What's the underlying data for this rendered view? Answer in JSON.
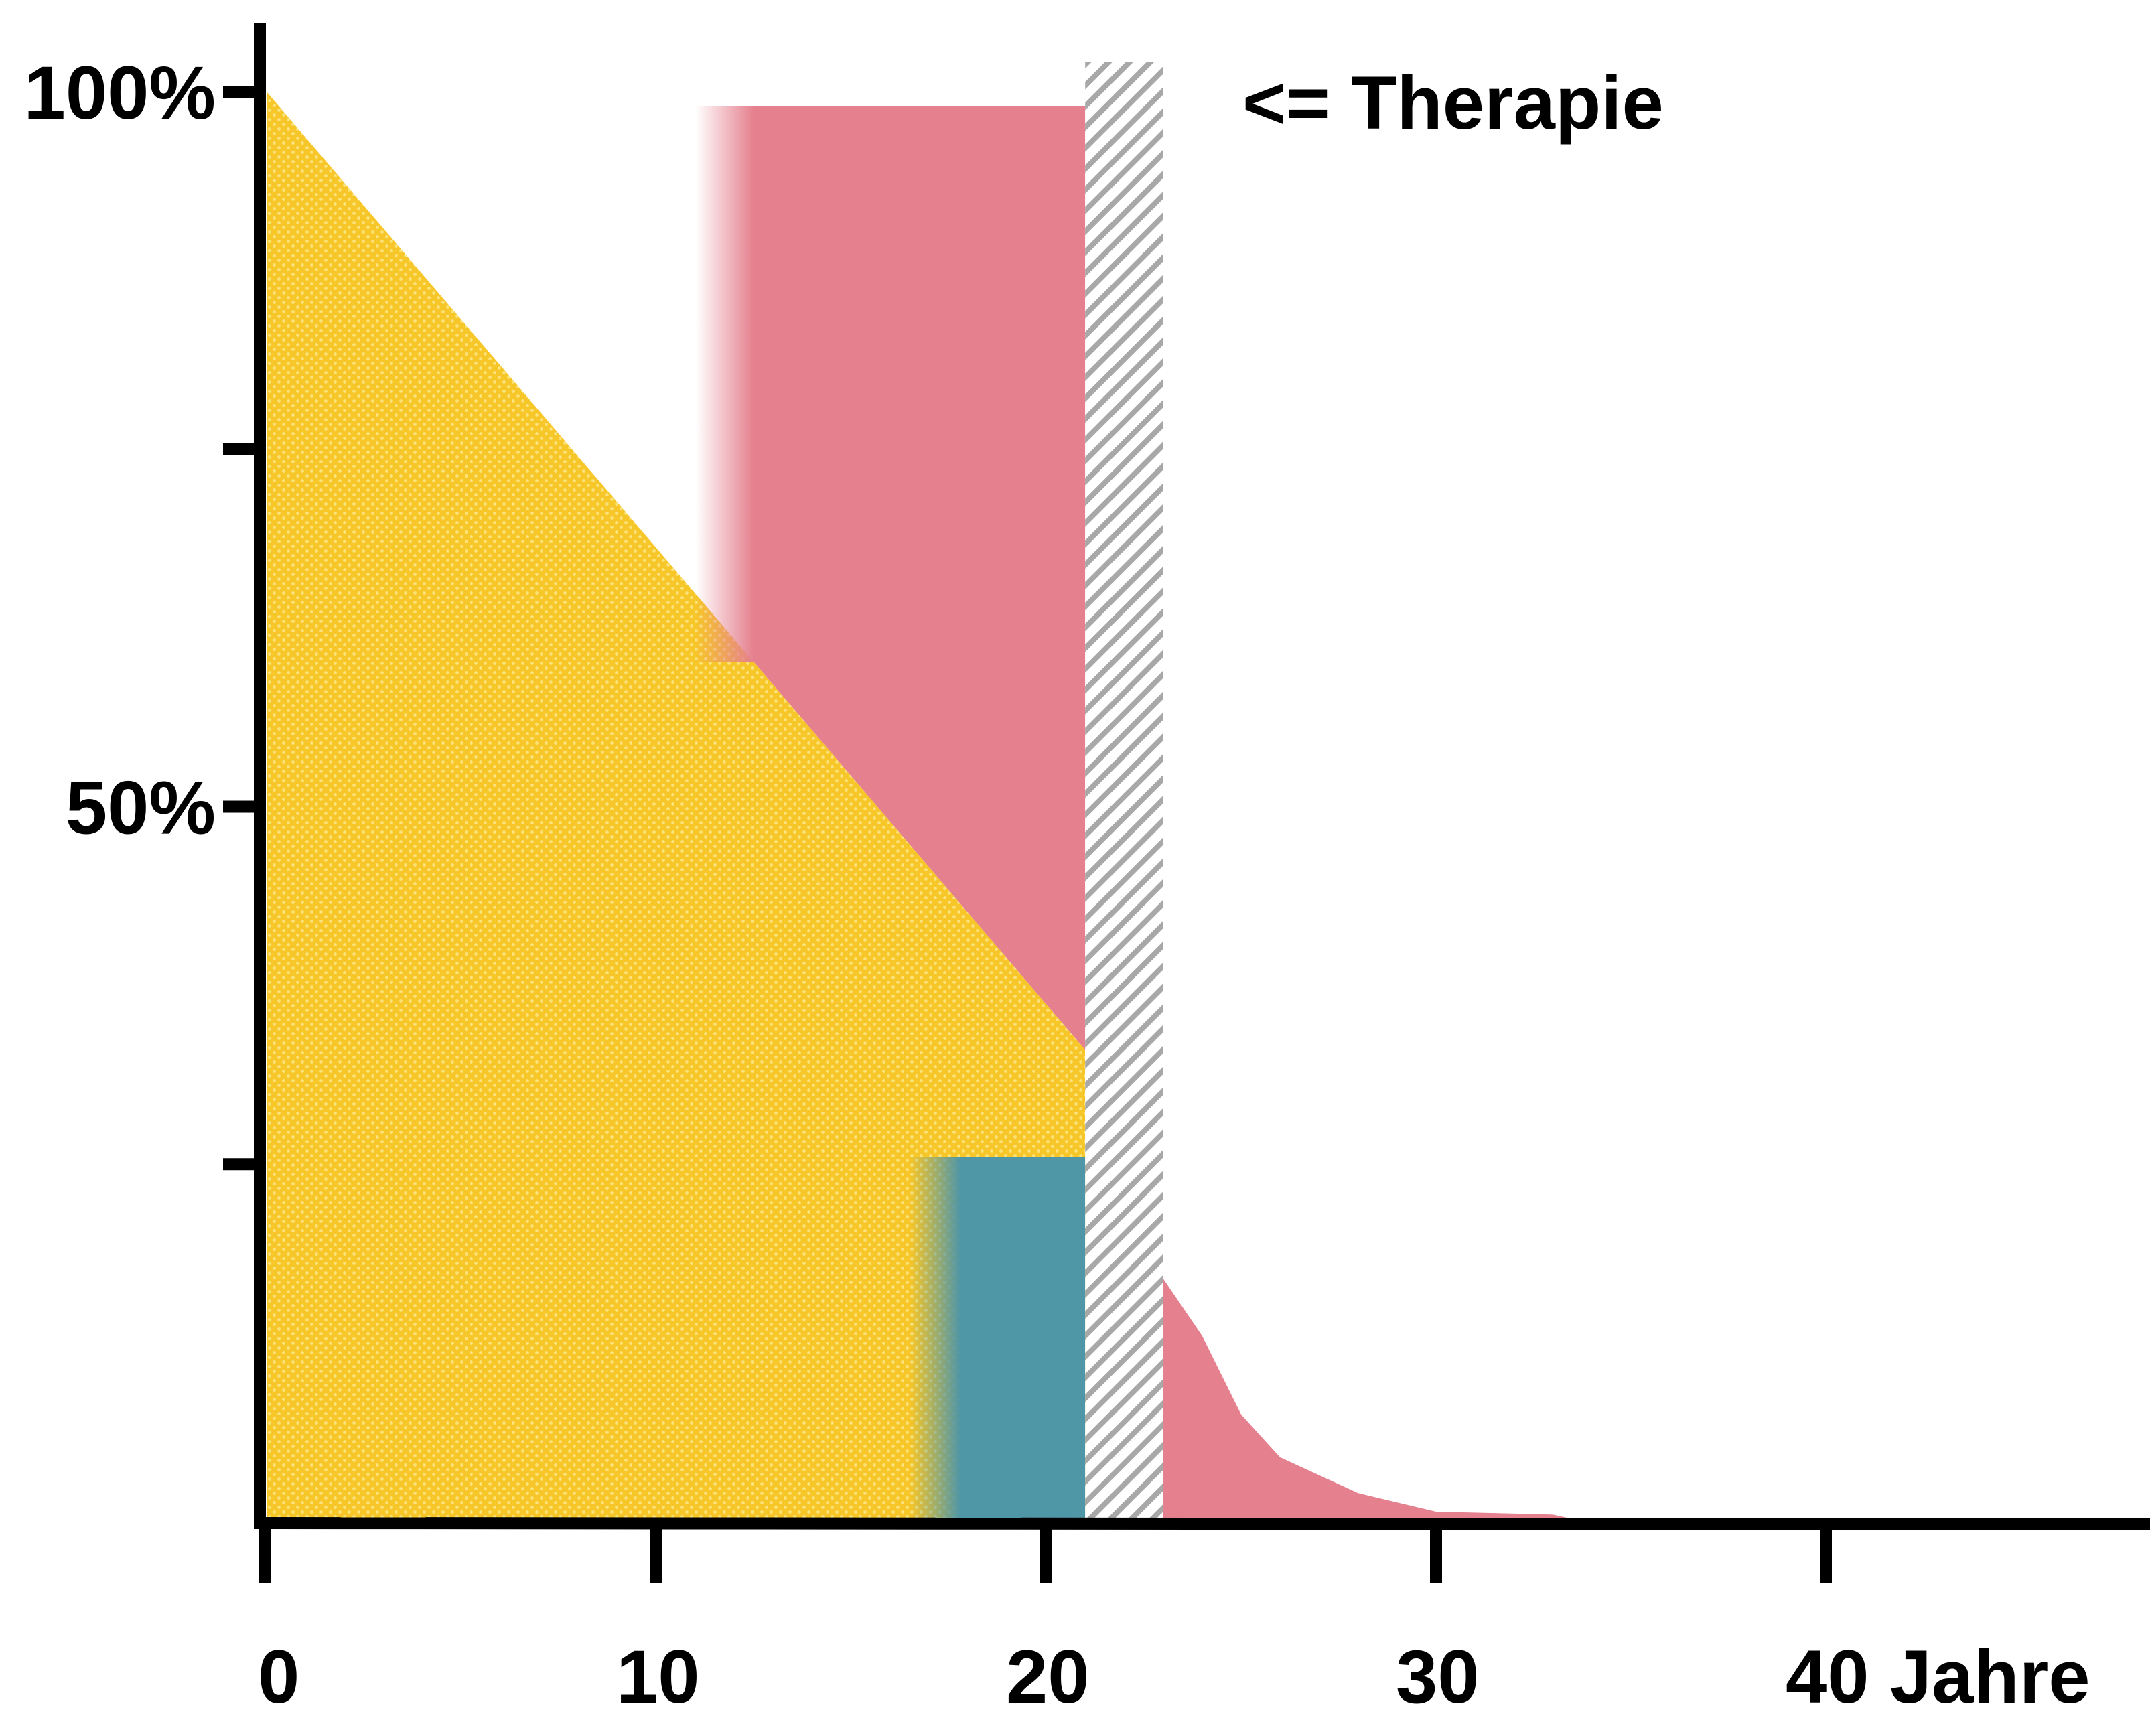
{
  "chart_data": {
    "type": "area",
    "title": "",
    "xlabel": "",
    "ylabel": "",
    "xlim": [
      0,
      48
    ],
    "ylim": [
      0,
      100
    ],
    "x_ticks": [
      {
        "value": 0,
        "label": "0"
      },
      {
        "value": 10,
        "label": "10"
      },
      {
        "value": 20,
        "label": "20"
      },
      {
        "value": 30,
        "label": "30"
      },
      {
        "value": 40,
        "label": "40 Jahre"
      }
    ],
    "y_ticks": [
      {
        "value": 100,
        "label": "100%"
      },
      {
        "value": 75,
        "label": ""
      },
      {
        "value": 50,
        "label": "50%"
      },
      {
        "value": 25,
        "label": ""
      }
    ],
    "annotation": "<= Therapie",
    "colors": {
      "yellow": "#f7c628",
      "yellow_light": "#fbe27a",
      "red": "#e5808e",
      "teal": "#4f96a6",
      "hatch_gray": "#a8a8a8",
      "axis": "#000000"
    },
    "regions": {
      "yellow_area": [
        [
          0,
          100
        ],
        [
          21,
          33
        ],
        [
          21,
          0
        ],
        [
          0,
          0
        ]
      ],
      "yellow_tail": [
        [
          23,
          1
        ],
        [
          28,
          1
        ],
        [
          28,
          0
        ],
        [
          23,
          0
        ]
      ],
      "red_block": {
        "x_start": 11,
        "x_solid": 12.5,
        "x_end": 21,
        "y_top": 99
      },
      "teal_block": {
        "x_start": 16.5,
        "x_solid": 17.8,
        "x_end": 21,
        "y_top": 25.5
      },
      "therapy_band": {
        "x_start": 21,
        "x_end": 23
      },
      "red_tail": [
        [
          23,
          17
        ],
        [
          24,
          13
        ],
        [
          25,
          7.5
        ],
        [
          26,
          4.5
        ],
        [
          28,
          2
        ],
        [
          30,
          0.7
        ],
        [
          33,
          0.5
        ],
        [
          33.5,
          0.2
        ],
        [
          33.5,
          0
        ],
        [
          23,
          0
        ]
      ]
    }
  }
}
